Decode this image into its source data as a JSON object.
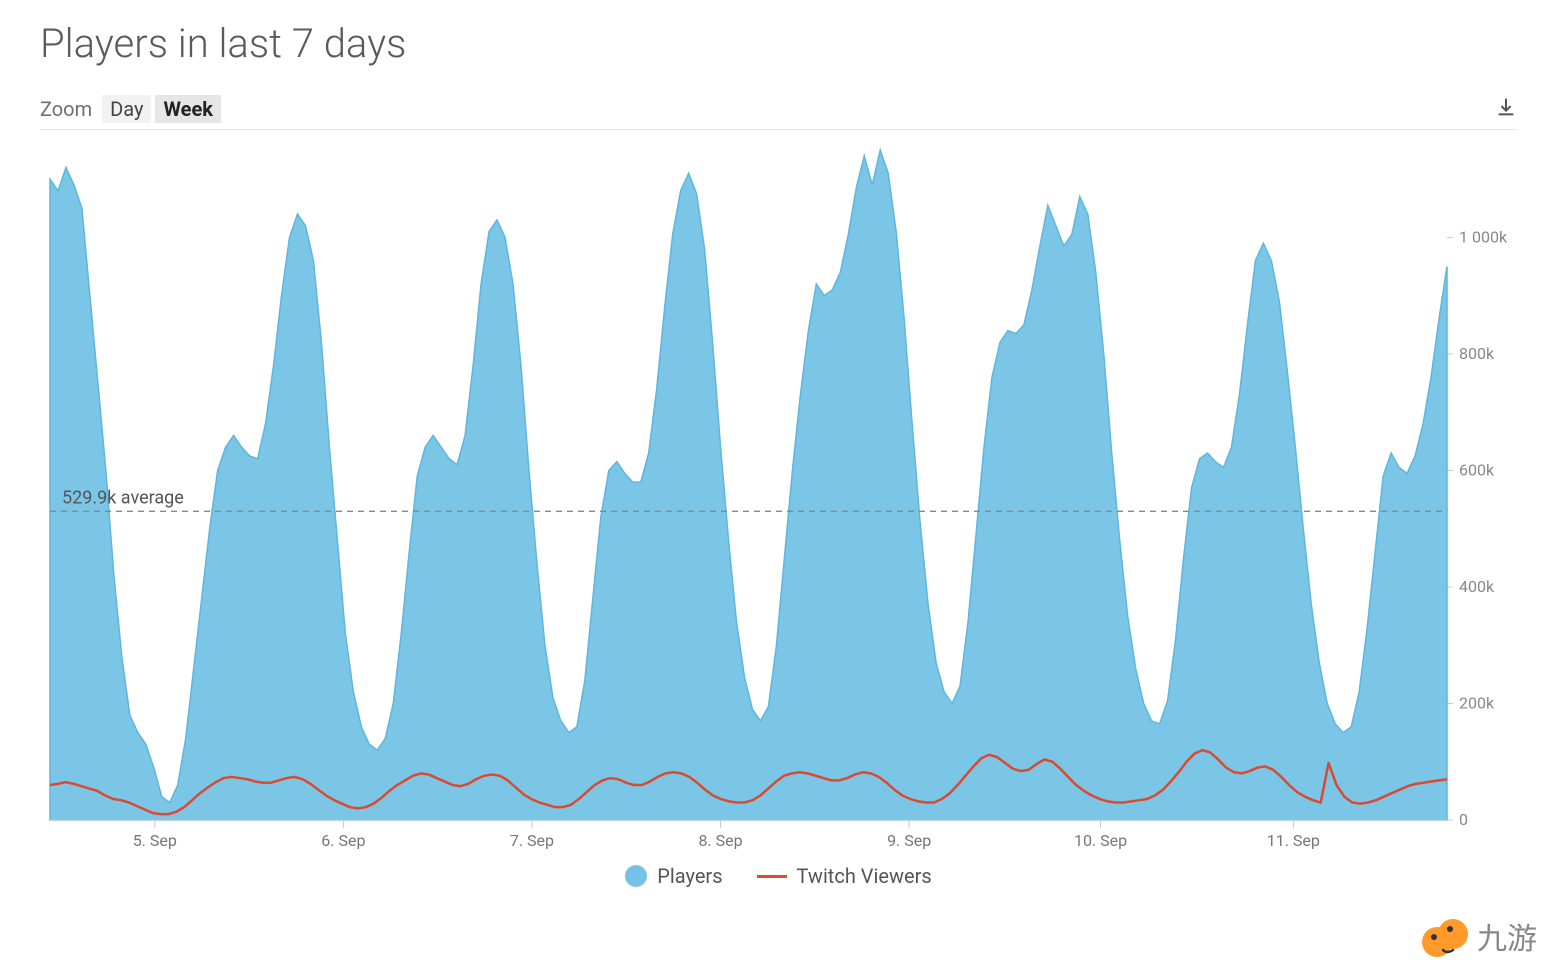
{
  "title": "Players in last 7 days",
  "zoom": {
    "label": "Zoom",
    "options": [
      "Day",
      "Week"
    ],
    "active": "Week"
  },
  "chart": {
    "type": "area",
    "ylim": [
      0,
      1150000
    ],
    "yticks": [
      0,
      200000,
      400000,
      600000,
      800000,
      1000000
    ],
    "ytick_labels": [
      "0",
      "200k",
      "400k",
      "600k",
      "800k",
      "1 000k"
    ],
    "xtick_labels": [
      "5. Sep",
      "6. Sep",
      "7. Sep",
      "8. Sep",
      "9. Sep",
      "10. Sep",
      "11. Sep"
    ],
    "xtick_positions": [
      0.075,
      0.21,
      0.345,
      0.48,
      0.615,
      0.752,
      0.89
    ],
    "average_value": 529900,
    "average_label": "529.9k average",
    "background_color": "#ffffff",
    "avg_line_color": "#888888",
    "tick_color": "#c8c8c8",
    "text_color": "#888888",
    "series": {
      "players": {
        "label": "Players",
        "fill_color": "#74c3e6",
        "stroke_color": "#5eb6dd",
        "stroke_width": 1.5,
        "opacity": 0.95,
        "data": [
          1100000,
          1080000,
          1120000,
          1090000,
          1050000,
          900000,
          750000,
          600000,
          420000,
          280000,
          180000,
          150000,
          130000,
          90000,
          40000,
          30000,
          60000,
          140000,
          260000,
          380000,
          500000,
          600000,
          640000,
          660000,
          640000,
          625000,
          620000,
          680000,
          780000,
          900000,
          1000000,
          1040000,
          1020000,
          960000,
          820000,
          640000,
          480000,
          320000,
          220000,
          160000,
          130000,
          120000,
          140000,
          200000,
          320000,
          460000,
          590000,
          640000,
          660000,
          640000,
          620000,
          610000,
          660000,
          780000,
          920000,
          1010000,
          1030000,
          1000000,
          920000,
          780000,
          600000,
          440000,
          300000,
          210000,
          170000,
          150000,
          160000,
          240000,
          380000,
          520000,
          600000,
          615000,
          595000,
          580000,
          580000,
          630000,
          740000,
          880000,
          1005000,
          1080000,
          1110000,
          1075000,
          980000,
          820000,
          640000,
          480000,
          340000,
          245000,
          190000,
          170000,
          195000,
          300000,
          450000,
          600000,
          730000,
          840000,
          920000,
          900000,
          910000,
          940000,
          1005000,
          1085000,
          1140000,
          1090000,
          1150000,
          1110000,
          1010000,
          860000,
          680000,
          510000,
          370000,
          270000,
          220000,
          200000,
          230000,
          340000,
          490000,
          640000,
          760000,
          820000,
          840000,
          835000,
          850000,
          910000,
          985000,
          1055000,
          1020000,
          985000,
          1005000,
          1070000,
          1040000,
          940000,
          800000,
          630000,
          480000,
          350000,
          260000,
          200000,
          170000,
          165000,
          205000,
          310000,
          450000,
          570000,
          620000,
          630000,
          615000,
          605000,
          640000,
          730000,
          850000,
          960000,
          990000,
          960000,
          890000,
          770000,
          640000,
          500000,
          370000,
          270000,
          200000,
          165000,
          150000,
          160000,
          220000,
          330000,
          460000,
          590000,
          630000,
          605000,
          595000,
          625000,
          680000,
          760000,
          860000,
          950000
        ]
      },
      "twitch": {
        "label": "Twitch Viewers",
        "stroke_color": "#d84b2f",
        "stroke_width": 2.5,
        "data": [
          60000,
          62000,
          65000,
          62000,
          58000,
          54000,
          50000,
          42000,
          36000,
          34000,
          30000,
          24000,
          18000,
          12000,
          10000,
          10000,
          14000,
          22000,
          34000,
          46000,
          56000,
          65000,
          72000,
          74000,
          72000,
          70000,
          66000,
          64000,
          64000,
          68000,
          72000,
          74000,
          70000,
          62000,
          52000,
          42000,
          34000,
          28000,
          22000,
          20000,
          22000,
          28000,
          38000,
          50000,
          60000,
          68000,
          76000,
          80000,
          78000,
          72000,
          66000,
          60000,
          58000,
          62000,
          70000,
          76000,
          78000,
          76000,
          68000,
          56000,
          44000,
          36000,
          30000,
          26000,
          22000,
          22000,
          26000,
          36000,
          48000,
          60000,
          68000,
          72000,
          70000,
          64000,
          60000,
          60000,
          66000,
          74000,
          80000,
          82000,
          80000,
          74000,
          64000,
          52000,
          42000,
          36000,
          32000,
          30000,
          30000,
          34000,
          42000,
          54000,
          66000,
          76000,
          80000,
          82000,
          80000,
          76000,
          72000,
          68000,
          68000,
          72000,
          78000,
          82000,
          80000,
          74000,
          64000,
          52000,
          42000,
          36000,
          32000,
          30000,
          30000,
          36000,
          46000,
          60000,
          76000,
          92000,
          106000,
          112000,
          108000,
          98000,
          88000,
          84000,
          86000,
          96000,
          104000,
          100000,
          88000,
          74000,
          60000,
          50000,
          42000,
          36000,
          32000,
          30000,
          30000,
          32000,
          34000,
          36000,
          42000,
          52000,
          66000,
          82000,
          100000,
          114000,
          120000,
          116000,
          104000,
          90000,
          82000,
          80000,
          84000,
          90000,
          92000,
          86000,
          74000,
          60000,
          48000,
          40000,
          34000,
          30000,
          98000,
          60000,
          40000,
          30000,
          28000,
          30000,
          34000,
          40000,
          46000,
          52000,
          58000,
          62000,
          64000,
          66000,
          68000,
          70000
        ]
      }
    }
  },
  "legend": {
    "players_label": "Players",
    "twitch_label": "Twitch Viewers",
    "players_color": "#74c3e6",
    "twitch_color": "#d84b2f"
  },
  "watermark": {
    "text": "九游",
    "color": "#888888",
    "logo_circle_color": "#ff9a2b",
    "logo_eye_color": "#333333"
  }
}
